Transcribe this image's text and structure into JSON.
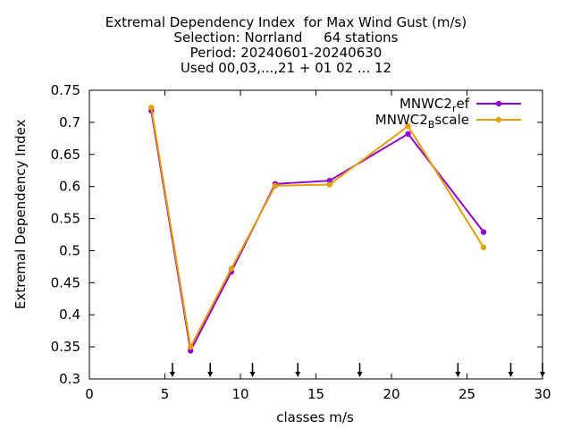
{
  "header": {
    "title_lines": [
      "Extremal Dependency Index  for Max Wind Gust (m/s)",
      "Selection: Norrland     64 stations",
      "Period: 20240601-20240630",
      "Used 00,03,...,21 + 01 02 ... 12"
    ]
  },
  "chart_data": {
    "type": "line",
    "title": "Extremal Dependency Index  for Max Wind Gust (m/s)",
    "xlabel": "classes m/s",
    "ylabel": "Extremal Dependency Index",
    "xlim": [
      0,
      30
    ],
    "ylim": [
      0.3,
      0.75
    ],
    "xticks": [
      0,
      5,
      10,
      15,
      20,
      25,
      30
    ],
    "yticks": [
      0.3,
      0.35,
      0.4,
      0.45,
      0.5,
      0.55,
      0.6,
      0.65,
      0.7,
      0.75
    ],
    "ytick_labels": [
      "0.3",
      "0.35",
      "0.4",
      "0.45",
      "0.5",
      "0.55",
      "0.6",
      "0.65",
      "0.7",
      "0.75"
    ],
    "grid": false,
    "legend_position": "top-right",
    "class_markers": [
      5.5,
      8,
      10.8,
      13.8,
      17.9,
      24.4,
      27.9,
      30
    ],
    "series": [
      {
        "name_main": "MNWC2",
        "name_sub": "r",
        "name_rest": "ef",
        "color": "#9400d3",
        "x": [
          4.1,
          6.7,
          9.4,
          12.3,
          15.9,
          21.1,
          26.1
        ],
        "y": [
          0.718,
          0.344,
          0.467,
          0.604,
          0.609,
          0.682,
          0.529
        ]
      },
      {
        "name_main": "MNWC2",
        "name_sub": "B",
        "name_rest": "scale",
        "color": "#e69f00",
        "x": [
          4.1,
          6.7,
          9.4,
          12.3,
          15.9,
          21.1,
          26.1
        ],
        "y": [
          0.723,
          0.35,
          0.472,
          0.601,
          0.603,
          0.694,
          0.505
        ]
      }
    ]
  }
}
